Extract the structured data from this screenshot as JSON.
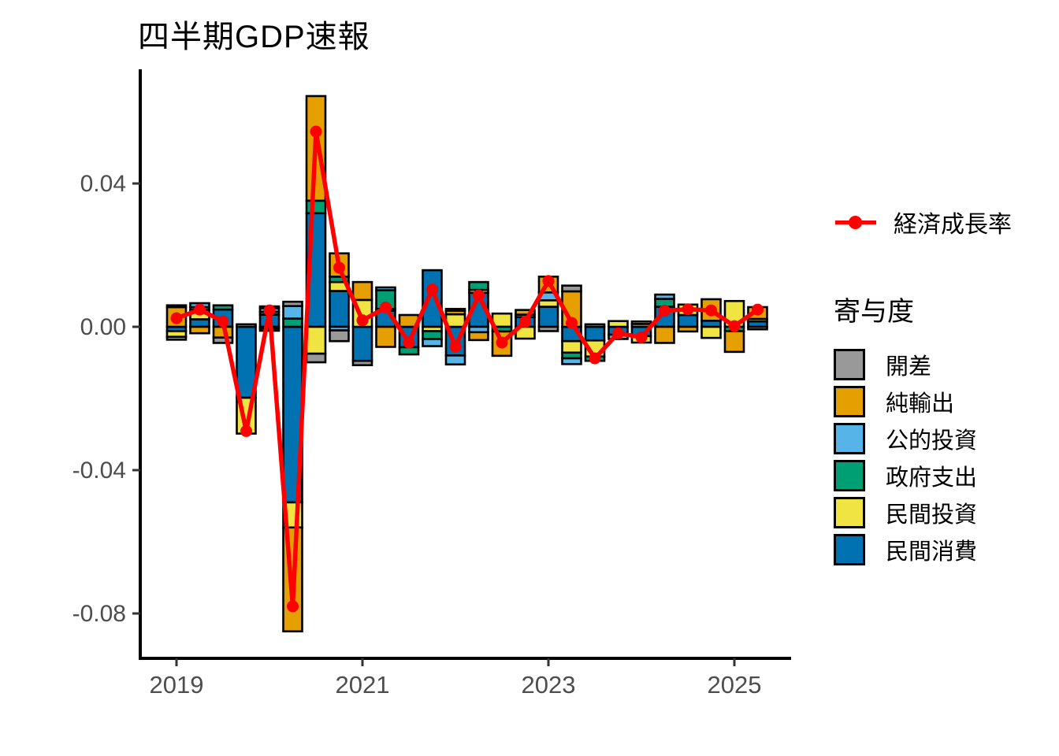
{
  "title": "四半期GDP速報",
  "legend": {
    "line_label": "経済成長率",
    "group_title": "寄与度",
    "items": [
      {
        "key": "gap",
        "label": "開差",
        "color": "#999999"
      },
      {
        "key": "net-exports",
        "label": "純輸出",
        "color": "#E69F00"
      },
      {
        "key": "public-investment",
        "label": "公的投資",
        "color": "#56B4E9"
      },
      {
        "key": "government-spending",
        "label": "政府支出",
        "color": "#009E73"
      },
      {
        "key": "private-investment",
        "label": "民間投資",
        "color": "#F0E442"
      },
      {
        "key": "private-consumption",
        "label": "民間消費",
        "color": "#0072B2"
      }
    ]
  },
  "chart_data": {
    "type": "bar",
    "subtype": "stacked-contribution-bars-with-line",
    "title": "四半期GDP速報",
    "xlabel": "",
    "ylabel": "",
    "grid": false,
    "background": "#FFFFFF",
    "axis_line_color": "#000000",
    "axis_text_color": "#4D4D4D",
    "ylim": [
      -0.092,
      0.0715
    ],
    "y_ticks": [
      0.04,
      0.0,
      -0.04,
      -0.08
    ],
    "y_tick_labels": [
      "0.04",
      "0.00",
      "-0.04",
      "-0.08"
    ],
    "x_tick_labels": [
      "2019",
      "2021",
      "2023",
      "2025"
    ],
    "x_tick_category_index": [
      0,
      8,
      16,
      24
    ],
    "categories": [
      "2019Q1",
      "2019Q2",
      "2019Q3",
      "2019Q4",
      "2020Q1",
      "2020Q2",
      "2020Q3",
      "2020Q4",
      "2021Q1",
      "2021Q2",
      "2021Q3",
      "2021Q4",
      "2022Q1",
      "2022Q2",
      "2022Q3",
      "2022Q4",
      "2023Q1",
      "2023Q2",
      "2023Q3",
      "2023Q4",
      "2024Q1",
      "2024Q2",
      "2024Q3",
      "2024Q4",
      "2025Q1",
      "2025Q2"
    ],
    "stack_order_note": "series listed bottom-of-stack first (nearest zero); legend shows reverse order",
    "series": [
      {
        "name": "民間消費",
        "color": "#0072B2",
        "values": [
          -0.0012,
          0.0021,
          0.0048,
          -0.0198,
          0.0034,
          -0.049,
          0.0317,
          0.01,
          -0.0095,
          0.0045,
          -0.0057,
          0.0158,
          -0.008,
          0.0095,
          0.0,
          0.0027,
          0.0056,
          -0.004,
          -0.0038,
          -0.0022,
          -0.0026,
          0.0056,
          0.0033,
          0.0017,
          0.0,
          0.0015
        ]
      },
      {
        "name": "民間投資",
        "color": "#F0E442",
        "values": [
          -0.0016,
          0.0026,
          0.0,
          -0.01,
          -0.0005,
          -0.007,
          -0.0075,
          0.0025,
          0.0075,
          0.0005,
          0.0,
          -0.0012,
          0.0035,
          0.0008,
          0.0037,
          -0.0033,
          0.0018,
          -0.0032,
          -0.0045,
          0.0016,
          -0.0018,
          0.0,
          0.0029,
          -0.0031,
          0.0072,
          0.0007
        ]
      },
      {
        "name": "政府支出",
        "color": "#009E73",
        "values": [
          0.0,
          0.0008,
          0.0012,
          0.0,
          0.0008,
          0.0023,
          0.0035,
          0.0015,
          0.0,
          0.0052,
          -0.002,
          -0.0022,
          0.0,
          0.0022,
          -0.0013,
          0.0,
          0.0,
          -0.0016,
          -0.0012,
          0.0,
          0.0,
          0.0022,
          0.0,
          0.0,
          -0.0012,
          0.0
        ]
      },
      {
        "name": "公的投資",
        "color": "#56B4E9",
        "values": [
          -0.0008,
          0.0011,
          0.0,
          0.0,
          0.001,
          0.0035,
          0.0,
          -0.001,
          0.0,
          0.0008,
          0.0,
          -0.002,
          -0.0025,
          -0.0015,
          0.0,
          0.0007,
          0.0022,
          -0.0016,
          0.0,
          0.0,
          0.0,
          0.0012,
          0.0,
          0.0,
          0.0,
          0.0
        ]
      },
      {
        "name": "純輸出",
        "color": "#E69F00",
        "values": [
          0.0055,
          -0.0018,
          -0.003,
          0.0007,
          -0.0006,
          -0.029,
          0.0292,
          0.0065,
          0.005,
          -0.0056,
          0.0033,
          0.0,
          0.001,
          -0.0022,
          -0.0068,
          0.0013,
          0.0044,
          0.0099,
          0.0007,
          0.0,
          0.0008,
          -0.0045,
          -0.0013,
          0.006,
          -0.0058,
          0.0033
        ]
      },
      {
        "name": "開差",
        "color": "#999999",
        "values": [
          0.0005,
          0.0,
          -0.0015,
          0.0,
          0.0005,
          0.0012,
          -0.0024,
          -0.003,
          -0.0012,
          0.0,
          0.0,
          0.0,
          0.0005,
          0.0,
          0.0,
          0.0,
          -0.0012,
          0.0016,
          0.0,
          -0.0012,
          0.0007,
          0.0,
          0.0,
          0.0,
          0.0,
          -0.0007
        ]
      }
    ],
    "line": {
      "name": "経済成長率",
      "color": "#FF0000",
      "values": [
        0.0024,
        0.0048,
        0.0015,
        -0.0291,
        0.0046,
        -0.078,
        0.0545,
        0.0165,
        0.0018,
        0.0054,
        -0.0044,
        0.0104,
        -0.0055,
        0.0088,
        -0.0044,
        0.0014,
        0.0128,
        0.0011,
        -0.0088,
        -0.0018,
        -0.0029,
        0.0045,
        0.0049,
        0.0046,
        0.0002,
        0.0048
      ]
    },
    "legend_position": "right"
  }
}
